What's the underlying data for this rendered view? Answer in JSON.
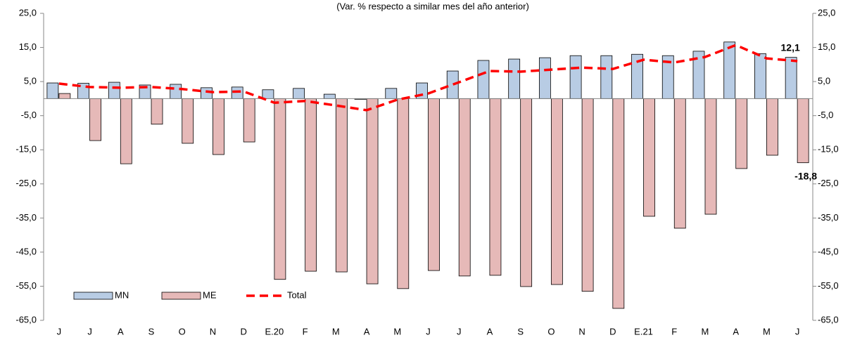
{
  "chart_data": {
    "type": "bar",
    "subtitle": "(Var. % respecto a similar mes del año anterior)",
    "categories": [
      "J",
      "J",
      "A",
      "S",
      "O",
      "N",
      "D",
      "E.20",
      "F",
      "M",
      "A",
      "M",
      "J",
      "J",
      "A",
      "S",
      "O",
      "N",
      "D",
      "E.21",
      "F",
      "M",
      "A",
      "M",
      "J"
    ],
    "series": [
      {
        "name": "MN",
        "type": "bar",
        "color": "#b8cce4",
        "values": [
          4.6,
          4.5,
          4.8,
          4.0,
          4.2,
          3.2,
          3.4,
          2.6,
          3.0,
          1.3,
          -0.2,
          3.0,
          4.6,
          8.1,
          11.2,
          11.6,
          12.0,
          12.6,
          12.6,
          13.0,
          12.6,
          13.9,
          16.6,
          13.2,
          12.1
        ],
        "value_labels": [
          null,
          null,
          null,
          null,
          null,
          null,
          null,
          null,
          null,
          null,
          null,
          null,
          null,
          null,
          null,
          null,
          null,
          null,
          null,
          null,
          null,
          null,
          null,
          null,
          "12,1"
        ]
      },
      {
        "name": "ME",
        "type": "bar",
        "color": "#e6b9b8",
        "values": [
          1.5,
          -12.3,
          -19.1,
          -7.5,
          -13.1,
          -16.4,
          -12.7,
          -53.0,
          -50.6,
          -50.8,
          -54.3,
          -55.7,
          -50.4,
          -52.0,
          -51.8,
          -55.1,
          -54.5,
          -56.5,
          -61.5,
          -34.5,
          -38.0,
          -33.9,
          -20.5,
          -16.6,
          -18.8
        ],
        "value_labels": [
          null,
          null,
          null,
          null,
          null,
          null,
          null,
          null,
          null,
          null,
          null,
          null,
          null,
          null,
          null,
          null,
          null,
          null,
          null,
          null,
          null,
          null,
          null,
          null,
          "-18,8"
        ]
      },
      {
        "name": "Total",
        "type": "line",
        "color": "#ff0000",
        "values": [
          4.4,
          3.4,
          3.2,
          3.4,
          2.8,
          1.9,
          2.1,
          -1.2,
          -0.7,
          -2.0,
          -3.4,
          -0.3,
          1.5,
          4.8,
          8.1,
          7.9,
          8.5,
          9.1,
          8.7,
          11.4,
          10.6,
          12.2,
          15.7,
          11.8,
          11.0
        ]
      }
    ],
    "ylim": [
      -65,
      25
    ],
    "yticks": [
      {
        "value": 25,
        "label": "25,0"
      },
      {
        "value": 15,
        "label": "15,0"
      },
      {
        "value": 5,
        "label": "5,0"
      },
      {
        "value": -5,
        "label": "-5,0"
      },
      {
        "value": -15,
        "label": "-15,0"
      },
      {
        "value": -25,
        "label": "-25,0"
      },
      {
        "value": -35,
        "label": "-35,0"
      },
      {
        "value": -45,
        "label": "-45,0"
      },
      {
        "value": -55,
        "label": "-55,0"
      },
      {
        "value": -65,
        "label": "-65,0"
      }
    ],
    "y2lim": [
      -65,
      25
    ],
    "y2ticks": [
      {
        "value": 25,
        "label": "25,0"
      },
      {
        "value": 15,
        "label": "15,0"
      },
      {
        "value": 5,
        "label": "5,0"
      },
      {
        "value": -5,
        "label": "-5,0"
      },
      {
        "value": -15,
        "label": "-15,0"
      },
      {
        "value": -25,
        "label": "-25,0"
      },
      {
        "value": -35,
        "label": "-35,0"
      },
      {
        "value": -45,
        "label": "-45,0"
      },
      {
        "value": -55,
        "label": "-55,0"
      },
      {
        "value": -65,
        "label": "-65,0"
      }
    ],
    "legend": "lower left"
  }
}
